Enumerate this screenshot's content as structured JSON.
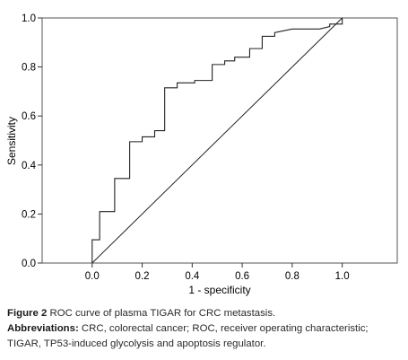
{
  "chart_data": {
    "type": "line",
    "xlabel": "1 - specificity",
    "ylabel": "Sensitivity",
    "xlim": [
      -0.2,
      1.22
    ],
    "ylim": [
      0,
      1
    ],
    "x_ticks": [
      "0.0",
      "0.2",
      "0.4",
      "0.6",
      "0.8",
      "1.0"
    ],
    "y_ticks": [
      "0.0",
      "0.2",
      "0.4",
      "0.6",
      "0.8",
      "1.0"
    ],
    "grid": false,
    "series": [
      {
        "kind": "roc-step",
        "x": [
          0.0,
          0.0,
          0.03,
          0.03,
          0.09,
          0.09,
          0.15,
          0.15,
          0.2,
          0.2,
          0.25,
          0.25,
          0.29,
          0.29,
          0.34,
          0.34,
          0.41,
          0.41,
          0.48,
          0.48,
          0.53,
          0.53,
          0.57,
          0.57,
          0.63,
          0.63,
          0.68,
          0.68,
          0.73,
          0.73,
          0.8,
          0.91,
          0.95,
          0.95,
          1.0,
          1.0
        ],
        "y": [
          0.0,
          0.095,
          0.095,
          0.21,
          0.21,
          0.345,
          0.345,
          0.495,
          0.495,
          0.515,
          0.515,
          0.54,
          0.54,
          0.715,
          0.715,
          0.735,
          0.735,
          0.745,
          0.745,
          0.81,
          0.81,
          0.825,
          0.825,
          0.84,
          0.84,
          0.875,
          0.875,
          0.925,
          0.925,
          0.94,
          0.955,
          0.955,
          0.965,
          0.975,
          0.975,
          1.0
        ]
      },
      {
        "kind": "reference-diagonal",
        "x": [
          0.0,
          1.0
        ],
        "y": [
          0.0,
          1.0
        ]
      }
    ]
  },
  "caption": {
    "figure_label": "Figure 2",
    "figure_text": " ROC curve of plasma TIGAR for CRC metastasis.",
    "abbrev_label": "Abbreviations:",
    "abbrev_text": " CRC, colorectal cancer; ROC, receiver operating characteristic; TIGAR, TP53-induced glycolysis and apoptosis regulator."
  }
}
